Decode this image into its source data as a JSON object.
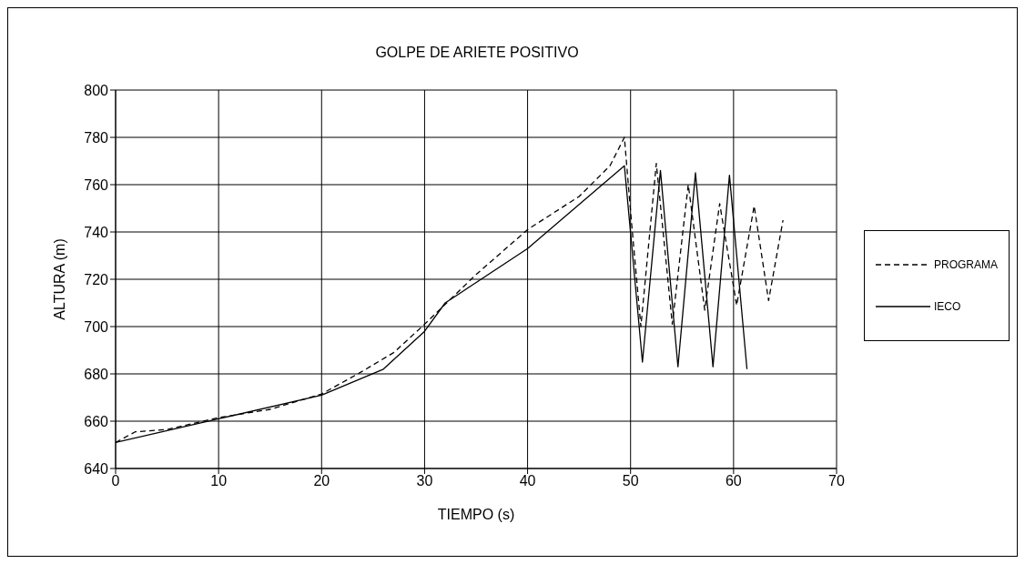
{
  "chart_data": {
    "type": "line",
    "title": "GOLPE DE ARIETE POSITIVO",
    "xlabel": "TIEMPO (s)",
    "ylabel": "ALTURA (m)",
    "xlim": [
      0,
      70
    ],
    "xticks": [
      0,
      10,
      20,
      30,
      40,
      50,
      60,
      70
    ],
    "ylim": [
      640,
      800
    ],
    "yticks": [
      640,
      660,
      680,
      700,
      720,
      740,
      760,
      780,
      800
    ],
    "grid": true,
    "legend": "right",
    "marker": "none",
    "series": [
      {
        "name": "PROGRAMA",
        "color": "#000000",
        "line_style": "dashed",
        "x": [
          0,
          1.9,
          5,
          10,
          15,
          20,
          23.8,
          27,
          30,
          35,
          40,
          45,
          48,
          49.4,
          50.05,
          51,
          52.5,
          54.05,
          55.6,
          57.2,
          58.65,
          60.3,
          62,
          63.4,
          64.8
        ],
        "values": [
          651,
          655.5,
          656.5,
          661.5,
          665,
          671.5,
          680.7,
          689,
          701,
          722,
          741,
          755,
          768,
          780,
          746,
          700,
          769,
          701,
          760,
          707,
          752,
          709,
          751,
          711,
          745
        ]
      },
      {
        "name": "IECO",
        "color": "#000000",
        "line_style": "solid",
        "x": [
          0,
          10,
          20,
          26,
          30,
          32,
          40,
          49.4,
          51.15,
          52.9,
          54.6,
          56.3,
          58,
          59.6,
          61.3
        ],
        "values": [
          651,
          661,
          671,
          682,
          698,
          710,
          733,
          768,
          685,
          766,
          683,
          765,
          683,
          764,
          682
        ]
      }
    ]
  }
}
